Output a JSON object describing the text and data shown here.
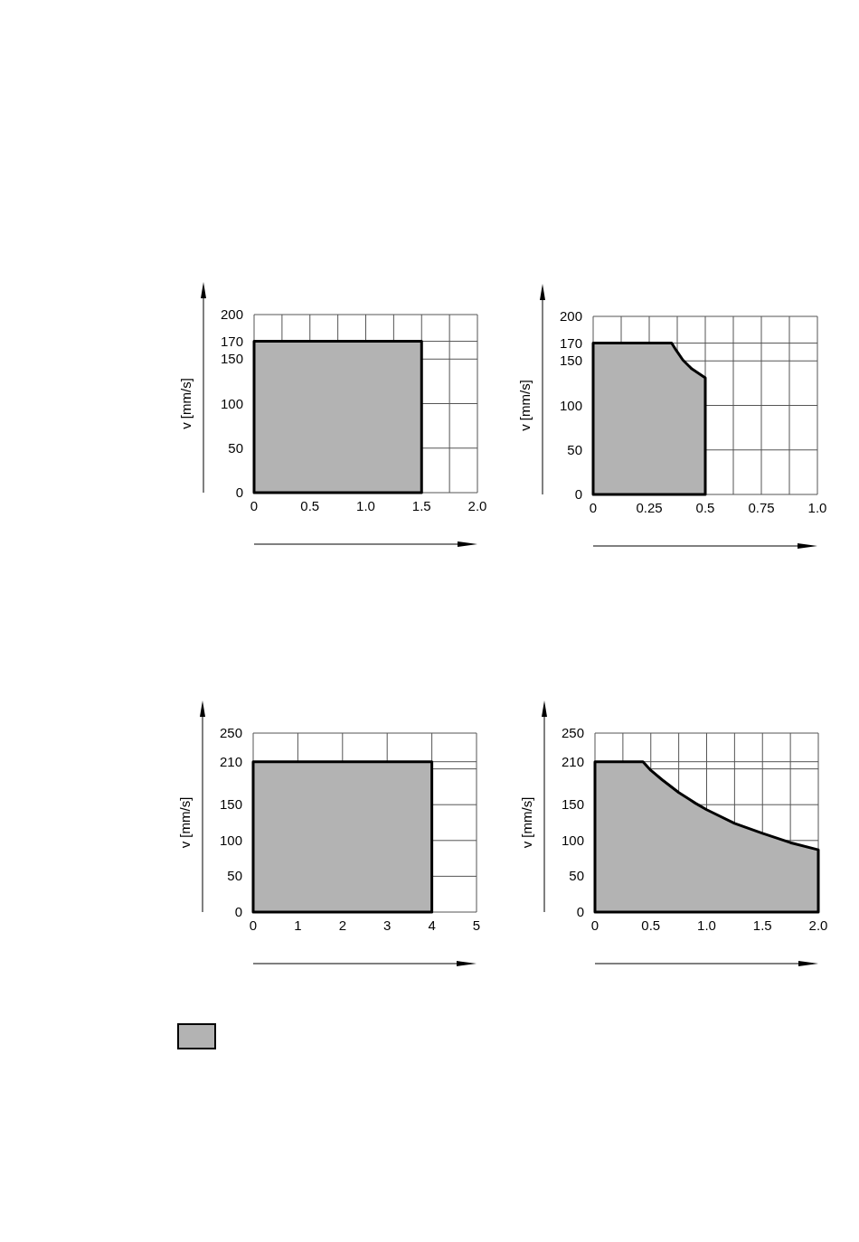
{
  "chart_data": [
    {
      "type": "area",
      "ylabel": "v [mm/s]",
      "xlim": [
        0,
        2
      ],
      "ylim": [
        0,
        200
      ],
      "xticks": [
        0,
        {
          "value": 0.25,
          "label": null
        },
        0.5,
        {
          "value": 0.75,
          "label": null
        },
        {
          "value": 1,
          "label": "1.0"
        },
        {
          "value": 1.25,
          "label": null
        },
        1.5,
        {
          "value": 1.75,
          "label": null
        },
        {
          "value": 2,
          "label": "2.0"
        }
      ],
      "yticks": [
        0,
        50,
        100,
        150,
        170,
        200
      ],
      "grid": true,
      "series": [
        {
          "color": "#b3b3b3",
          "x": [
            0,
            1.5
          ],
          "values": [
            170,
            170
          ]
        }
      ]
    },
    {
      "type": "area",
      "ylabel": "v [mm/s]",
      "xlim": [
        0,
        1
      ],
      "ylim": [
        0,
        200
      ],
      "xticks": [
        0,
        {
          "value": 0.125,
          "label": null
        },
        0.25,
        {
          "value": 0.375,
          "label": null
        },
        0.5,
        {
          "value": 0.625,
          "label": null
        },
        0.75,
        {
          "value": 0.875,
          "label": null
        },
        {
          "value": 1,
          "label": "1.0"
        }
      ],
      "yticks": [
        0,
        50,
        100,
        150,
        170,
        200
      ],
      "grid": true,
      "series": [
        {
          "color": "#b3b3b3",
          "x": [
            0,
            0.35,
            0.37,
            0.4,
            0.44,
            0.47,
            0.5
          ],
          "values": [
            170,
            170,
            162,
            151,
            141,
            136,
            131
          ]
        }
      ]
    },
    {
      "type": "area",
      "ylabel": "v [mm/s]",
      "xlim": [
        0,
        5
      ],
      "ylim": [
        0,
        250
      ],
      "xticks": [
        0,
        1,
        2,
        3,
        4,
        5
      ],
      "yticks": [
        0,
        50,
        100,
        150,
        {
          "value": 200,
          "label": null
        },
        210,
        250
      ],
      "grid": true,
      "series": [
        {
          "color": "#b3b3b3",
          "x": [
            0,
            4
          ],
          "values": [
            210,
            210
          ]
        }
      ]
    },
    {
      "type": "area",
      "ylabel": "v [mm/s]",
      "xlim": [
        0,
        2
      ],
      "ylim": [
        0,
        250
      ],
      "xticks": [
        0,
        {
          "value": 0.25,
          "label": null
        },
        0.5,
        {
          "value": 0.75,
          "label": null
        },
        {
          "value": 1,
          "label": "1.0"
        },
        {
          "value": 1.25,
          "label": null
        },
        1.5,
        {
          "value": 1.75,
          "label": null
        },
        {
          "value": 2,
          "label": "2.0"
        }
      ],
      "yticks": [
        0,
        50,
        100,
        150,
        {
          "value": 200,
          "label": null
        },
        210,
        250
      ],
      "grid": true,
      "series": [
        {
          "color": "#b3b3b3",
          "x": [
            0,
            0.43,
            0.5,
            0.6,
            0.75,
            0.9,
            1,
            1.25,
            1.5,
            1.75,
            2
          ],
          "values": [
            210,
            210,
            198,
            185,
            167,
            152,
            143,
            124,
            110,
            97,
            87
          ]
        }
      ]
    }
  ]
}
